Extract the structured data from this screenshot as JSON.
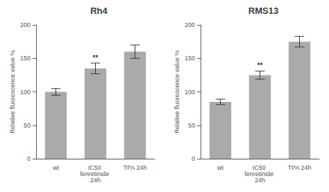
{
  "chart_data": [
    {
      "type": "bar",
      "title": "Rh4",
      "categories": [
        "wt",
        "IC50 fenretinide 24h",
        "TPA 24h"
      ],
      "values": [
        100,
        135,
        160
      ],
      "errors": [
        5,
        8,
        10
      ],
      "color": "#aaaaaa",
      "ylabel": "Relative fluorescence value %",
      "ylim": [
        0,
        200
      ],
      "yticks": [
        0,
        50,
        100,
        150,
        200
      ],
      "grid": false,
      "annotations": [
        {
          "text": "**",
          "category": "IC50 fenretinide 24h"
        }
      ]
    },
    {
      "type": "bar",
      "title": "RMS13",
      "categories": [
        "wt",
        "IC50 fenretinide 24h",
        "TPA 24h"
      ],
      "values": [
        85,
        125,
        175
      ],
      "errors": [
        4,
        6,
        8
      ],
      "color": "#aaaaaa",
      "ylabel": "Relative fluorescence value %",
      "ylim": [
        0,
        200
      ],
      "yticks": [
        0,
        50,
        100,
        150,
        200
      ],
      "grid": false,
      "annotations": [
        {
          "text": "**",
          "category": "IC50 fenretinide 24h"
        }
      ]
    }
  ]
}
